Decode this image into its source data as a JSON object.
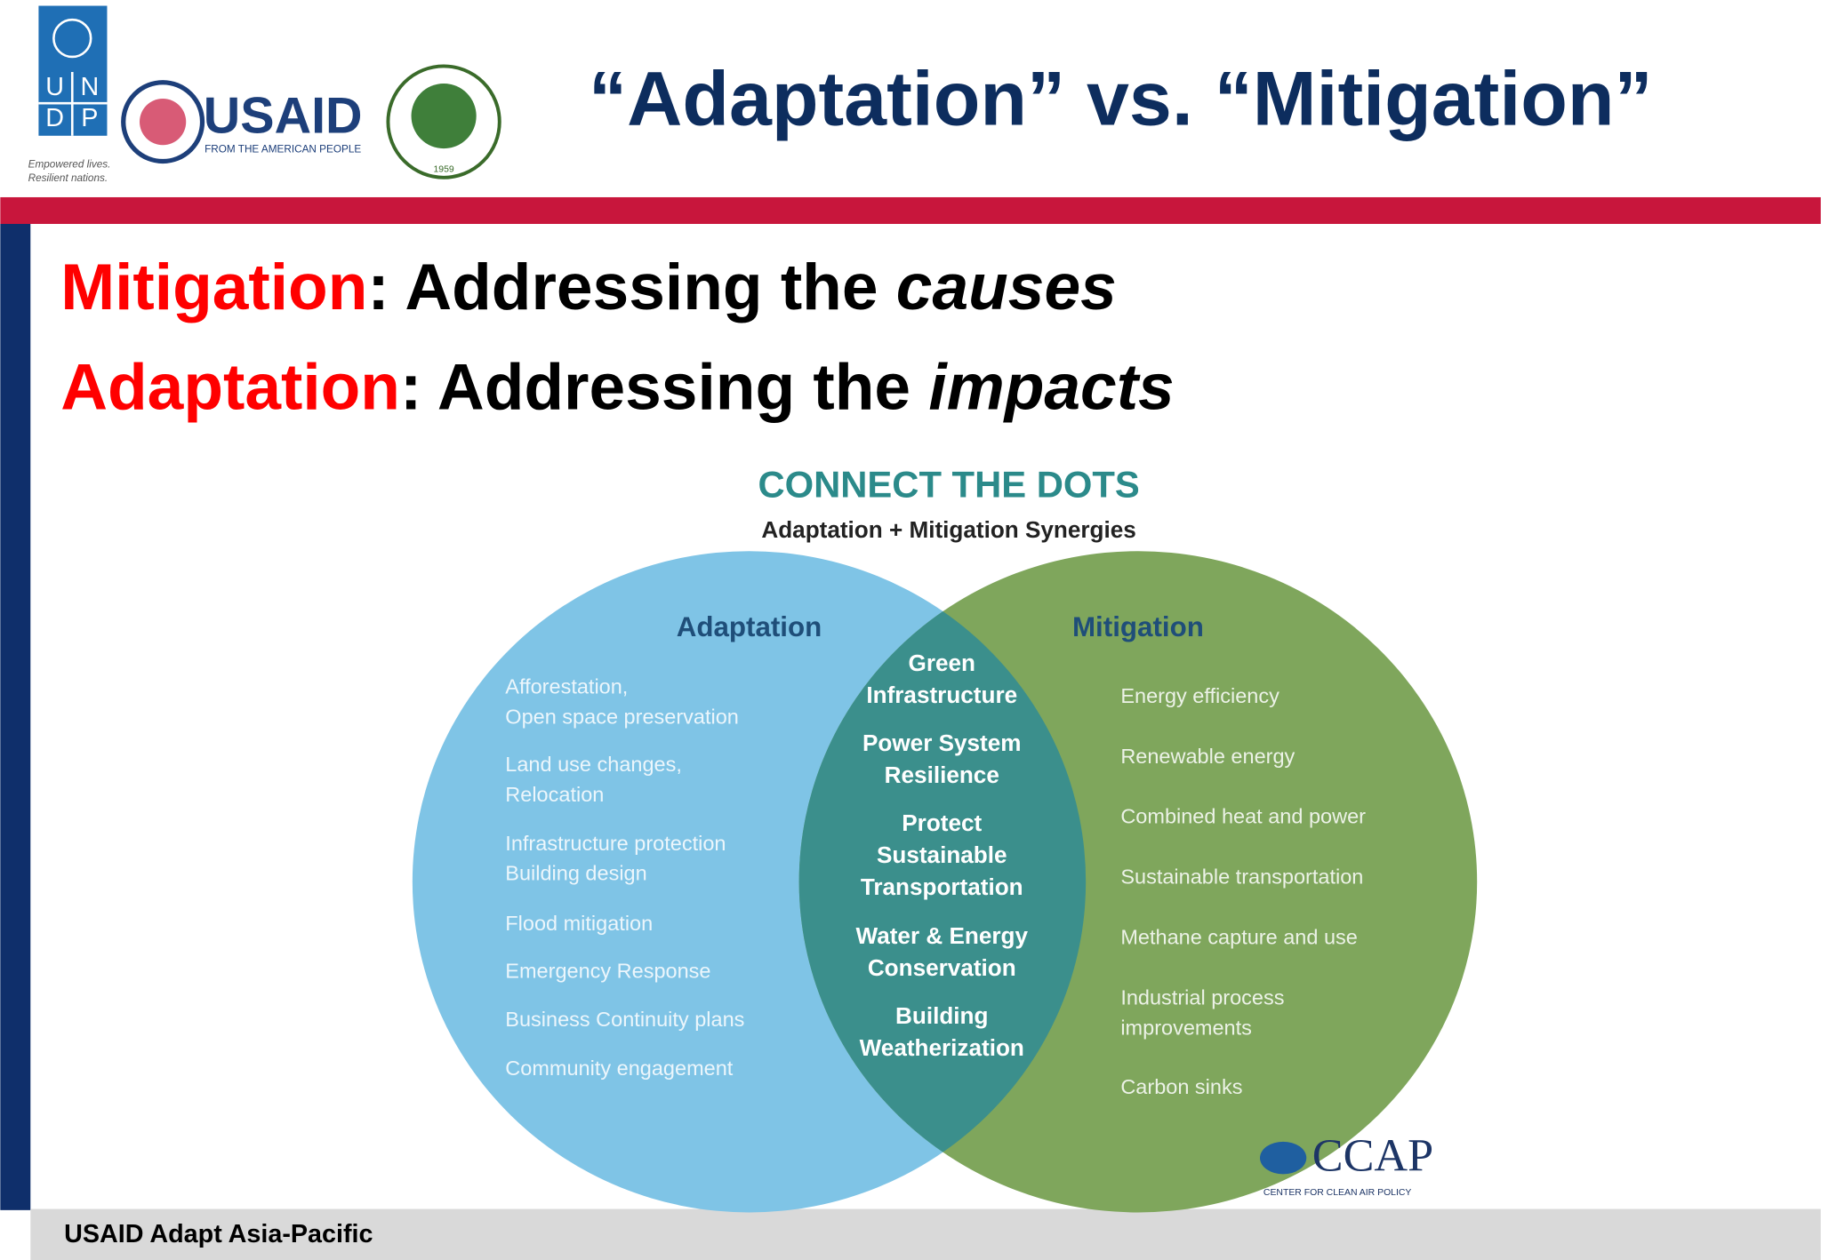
{
  "header": {
    "title": "“Adaptation” vs. “Mitigation”",
    "undp_letters": [
      "U",
      "N",
      "D",
      "P"
    ],
    "undp_tagline": [
      "Empowered lives.",
      "Resilient nations."
    ],
    "usaid": "USAID",
    "usaid_sub": "FROM THE AMERICAN PEOPLE",
    "ait_year": "1959"
  },
  "statements": [
    {
      "term": "Mitigation",
      "text": ": Addressing the ",
      "emphasis": "causes"
    },
    {
      "term": "Adaptation",
      "text": ": Addressing the ",
      "emphasis": "impacts"
    }
  ],
  "venn": {
    "title": "CONNECT THE DOTS",
    "subtitle": "Adaptation + Mitigation Synergies",
    "left": {
      "label": "Adaptation",
      "items": [
        [
          "Afforestation,",
          "Open space preservation"
        ],
        [
          "Land use changes,",
          "Relocation"
        ],
        [
          "Infrastructure protection",
          "Building design"
        ],
        [
          "Flood mitigation"
        ],
        [
          "Emergency Response"
        ],
        [
          "Business Continuity plans"
        ],
        [
          "Community engagement"
        ]
      ]
    },
    "center": {
      "items": [
        [
          "Green",
          "Infrastructure"
        ],
        [
          "Power  System",
          "Resilience"
        ],
        [
          "Protect",
          "Sustainable",
          "Transportation"
        ],
        [
          "Water & Energy",
          "Conservation"
        ],
        [
          "Building",
          "Weatherization"
        ]
      ]
    },
    "right": {
      "label": "Mitigation",
      "items": [
        [
          "Energy efficiency"
        ],
        [
          "Renewable energy"
        ],
        [
          "Combined heat and power"
        ],
        [
          "Sustainable transportation"
        ],
        [
          "Methane capture and use"
        ],
        [
          "Industrial process",
          "improvements"
        ],
        [
          "Carbon sinks"
        ]
      ]
    },
    "logo": "CCAP",
    "logo_sub": "CENTER FOR CLEAN AIR POLICY"
  },
  "footer": "USAID Adapt Asia-Pacific"
}
